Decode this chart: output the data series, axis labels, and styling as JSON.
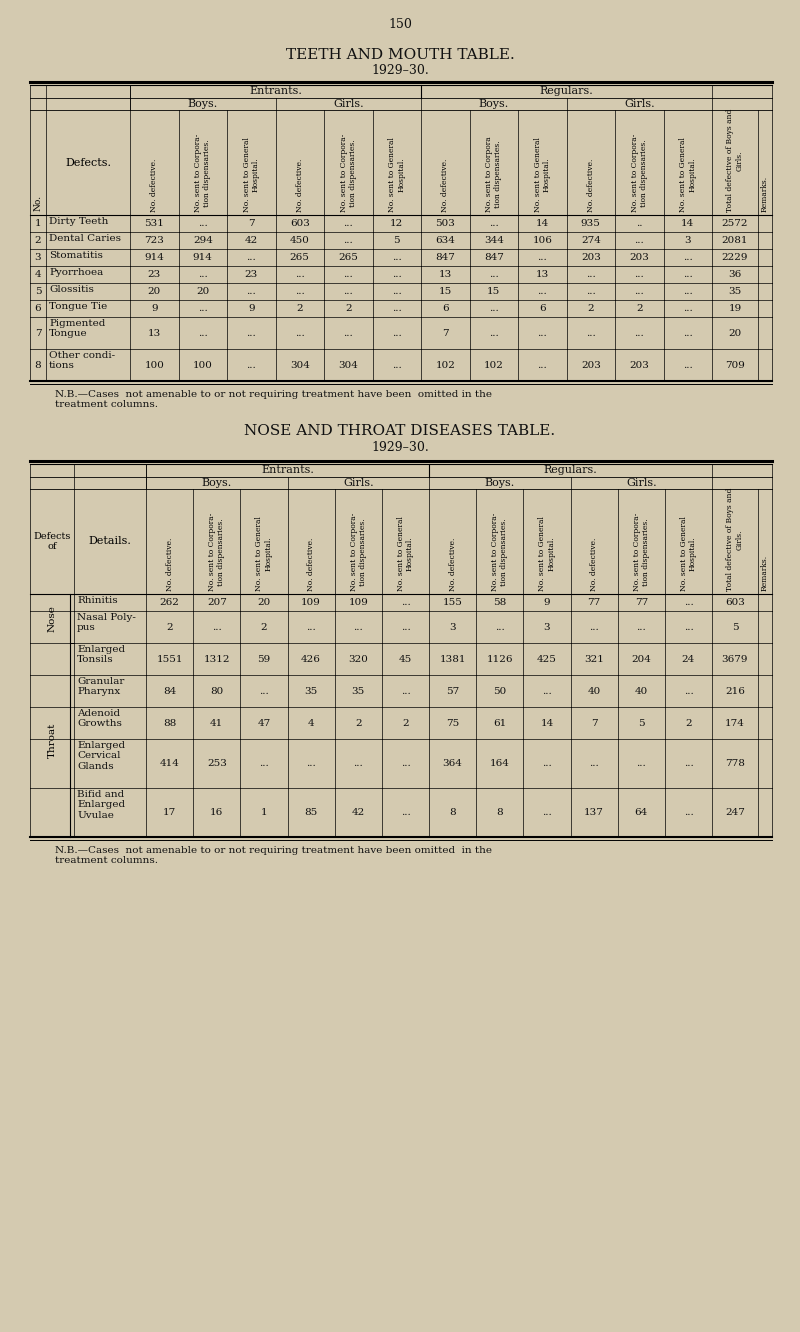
{
  "page_number": "150",
  "bg_color": "#d4cab0",
  "table1_title": "TEETH AND MOUTH TABLE.",
  "table1_subtitle": "1929–30.",
  "table1_rows": [
    {
      "no": "1",
      "defect": "Dirty Teeth",
      "data": [
        "531",
        "...",
        "7",
        "603",
        "...",
        "12",
        "503",
        "...",
        "14",
        "935",
        "..",
        "14",
        "2572",
        ""
      ]
    },
    {
      "no": "2",
      "defect": "Dental Caries",
      "data": [
        "723",
        "294",
        "42",
        "450",
        "...",
        "5",
        "634",
        "344",
        "106",
        "274",
        "...",
        "3",
        "2081",
        ""
      ]
    },
    {
      "no": "3",
      "defect": "Stomatitis",
      "data": [
        "914",
        "914",
        "...",
        "265",
        "265",
        "...",
        "847",
        "847",
        "...",
        "203",
        "203",
        "...",
        "2229",
        ""
      ]
    },
    {
      "no": "4",
      "defect": "Pyorrhoea",
      "data": [
        "23",
        "...",
        "23",
        "...",
        "...",
        "...",
        "13",
        "...",
        "13",
        "...",
        "...",
        "...",
        "36",
        ""
      ]
    },
    {
      "no": "5",
      "defect": "Glossitis",
      "data": [
        "20",
        "20",
        "...",
        "...",
        "...",
        "...",
        "15",
        "15",
        "...",
        "...",
        "...",
        "...",
        "35",
        ""
      ]
    },
    {
      "no": "6",
      "defect": "Tongue Tie",
      "data": [
        "9",
        "...",
        "9",
        "2",
        "2",
        "...",
        "6",
        "...",
        "6",
        "2",
        "2",
        "...",
        "19",
        ""
      ]
    },
    {
      "no": "7",
      "defect": "Pigmented\nTongue",
      "data": [
        "13",
        "...",
        "...",
        "...",
        "...",
        "...",
        "7",
        "...",
        "...",
        "...",
        "...",
        "...",
        "20",
        ""
      ]
    },
    {
      "no": "8",
      "defect": "Other condi-\ntions",
      "data": [
        "100",
        "100",
        "...",
        "304",
        "304",
        "...",
        "102",
        "102",
        "...",
        "203",
        "203",
        "...",
        "709",
        ""
      ]
    }
  ],
  "table1_nb": "N.B.—Cases  not amenable to or not requiring treatment have been  omitted in the\ntreatment columns.",
  "table2_title": "NOSE AND THROAT DISEASES TABLE.",
  "table2_subtitle": "1929–30.",
  "table2_rows": [
    {
      "group": "Nose",
      "detail": "Rhinitis",
      "data": [
        "262",
        "207",
        "20",
        "109",
        "109",
        "...",
        "155",
        "58",
        "9",
        "77",
        "77",
        "...",
        "603",
        ""
      ]
    },
    {
      "group": "",
      "detail": "Nasal Poly-\npus",
      "data": [
        "2",
        "...",
        "2",
        "...",
        "...",
        "...",
        "3",
        "...",
        "3",
        "...",
        "...",
        "...",
        "5",
        ""
      ]
    },
    {
      "group": "Throat",
      "detail": "Enlarged\nTonsils",
      "data": [
        "1551",
        "1312",
        "59",
        "426",
        "320",
        "45",
        "1381",
        "1126",
        "425",
        "321",
        "204",
        "24",
        "3679",
        ""
      ]
    },
    {
      "group": "",
      "detail": "Granular\nPharynx",
      "data": [
        "84",
        "80",
        "...",
        "35",
        "35",
        "...",
        "57",
        "50",
        "...",
        "40",
        "40",
        "...",
        "216",
        ""
      ]
    },
    {
      "group": "",
      "detail": "Adenoid\nGrowths",
      "data": [
        "88",
        "41",
        "47",
        "4",
        "2",
        "2",
        "75",
        "61",
        "14",
        "7",
        "5",
        "2",
        "174",
        ""
      ]
    },
    {
      "group": "",
      "detail": "Enlarged\nCervical\nGlands",
      "data": [
        "414",
        "253",
        "...",
        "...",
        "...",
        "...",
        "364",
        "164",
        "...",
        "...",
        "...",
        "...",
        "778",
        ""
      ]
    },
    {
      "group": "",
      "detail": "Bifid and\nEnlarged\nUvulae",
      "data": [
        "17",
        "16",
        "1",
        "85",
        "42",
        "...",
        "8",
        "8",
        "...",
        "137",
        "64",
        "...",
        "247",
        ""
      ]
    }
  ],
  "table2_nb": "N.B.—Cases  not amenable to or not requiring treatment have been omitted  in the\ntreatment columns."
}
